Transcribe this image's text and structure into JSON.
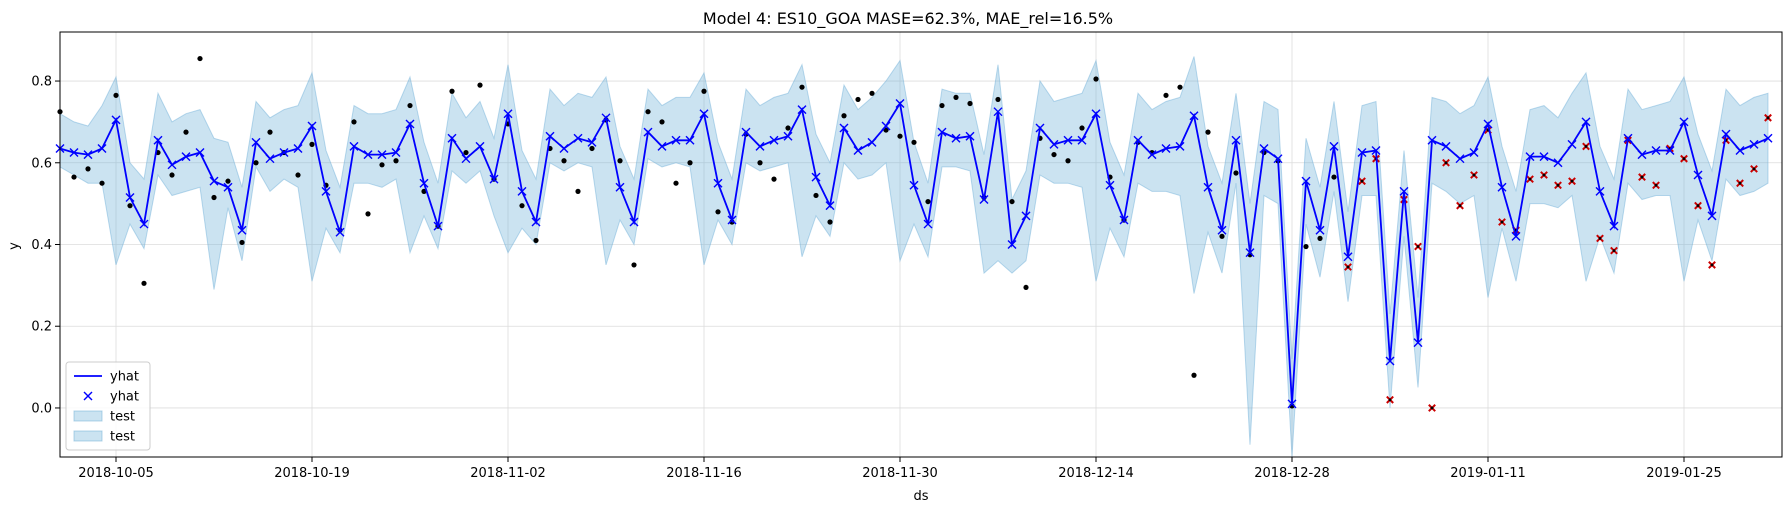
{
  "chart_data": {
    "type": "line",
    "title": "Model 4: ES10_GOA MASE=62.3%, MAE_rel=16.5%",
    "xlabel": "ds",
    "ylabel": "y",
    "x_start": "2018-10-01",
    "xlim": [
      "2018-10-01",
      "2019-02-01"
    ],
    "ylim": [
      -0.12,
      0.92
    ],
    "x_ticks": [
      "2018-10-05",
      "2018-10-19",
      "2018-11-02",
      "2018-11-16",
      "2018-11-30",
      "2018-12-14",
      "2018-12-28",
      "2019-01-11",
      "2019-01-25"
    ],
    "y_ticks": [
      0.0,
      0.2,
      0.4,
      0.6,
      0.8
    ],
    "grid": true,
    "legend_position": "bottom-left",
    "legend": [
      {
        "label": "yhat",
        "kind": "line",
        "color": "#0000ff"
      },
      {
        "label": "yhat",
        "kind": "marker-x",
        "color": "#0000ff"
      },
      {
        "label": "test",
        "kind": "band",
        "color": "#add8e6"
      },
      {
        "label": "test",
        "kind": "band",
        "color": "#add8e6"
      }
    ],
    "colors": {
      "yhat": "#0000ff",
      "band": "#6baed6",
      "actual": "#000000",
      "test_actual": "#cc0000"
    },
    "yhat": [
      0.635,
      0.625,
      0.62,
      0.635,
      0.705,
      0.515,
      0.45,
      0.655,
      0.595,
      0.615,
      0.625,
      0.555,
      0.54,
      0.435,
      0.65,
      0.61,
      0.625,
      0.635,
      0.69,
      0.53,
      0.43,
      0.64,
      0.62,
      0.62,
      0.625,
      0.695,
      0.55,
      0.445,
      0.66,
      0.61,
      0.64,
      0.56,
      0.72,
      0.53,
      0.455,
      0.665,
      0.635,
      0.66,
      0.65,
      0.71,
      0.54,
      0.455,
      0.675,
      0.64,
      0.655,
      0.655,
      0.72,
      0.55,
      0.46,
      0.675,
      0.64,
      0.655,
      0.665,
      0.73,
      0.565,
      0.495,
      0.685,
      0.63,
      0.65,
      0.69,
      0.745,
      0.545,
      0.45,
      0.675,
      0.66,
      0.665,
      0.51,
      0.725,
      0.4,
      0.47,
      0.685,
      0.645,
      0.655,
      0.655,
      0.72,
      0.545,
      0.46,
      0.655,
      0.62,
      0.635,
      0.64,
      0.715,
      0.54,
      0.435,
      0.655,
      0.38,
      0.635,
      0.61,
      0.01,
      0.555,
      0.435,
      0.64,
      0.37,
      0.625,
      0.63,
      0.115,
      0.53,
      0.16,
      0.655,
      0.64,
      0.61,
      0.625,
      0.695,
      0.54,
      0.42,
      0.615,
      0.615,
      0.6,
      0.645,
      0.7,
      0.53,
      0.445,
      0.66,
      0.62,
      0.63,
      0.63,
      0.7,
      0.57,
      0.47,
      0.67,
      0.63,
      0.645,
      0.66
    ],
    "yhat_upper": [
      0.72,
      0.7,
      0.69,
      0.74,
      0.81,
      0.6,
      0.56,
      0.77,
      0.7,
      0.72,
      0.73,
      0.66,
      0.65,
      0.54,
      0.75,
      0.71,
      0.73,
      0.74,
      0.82,
      0.63,
      0.54,
      0.74,
      0.72,
      0.72,
      0.73,
      0.81,
      0.65,
      0.55,
      0.77,
      0.71,
      0.75,
      0.66,
      0.84,
      0.63,
      0.56,
      0.78,
      0.74,
      0.77,
      0.76,
      0.81,
      0.64,
      0.56,
      0.78,
      0.74,
      0.76,
      0.76,
      0.82,
      0.65,
      0.56,
      0.78,
      0.74,
      0.76,
      0.77,
      0.84,
      0.67,
      0.6,
      0.79,
      0.73,
      0.76,
      0.8,
      0.85,
      0.65,
      0.55,
      0.78,
      0.77,
      0.77,
      0.62,
      0.84,
      0.51,
      0.58,
      0.8,
      0.75,
      0.76,
      0.77,
      0.85,
      0.65,
      0.57,
      0.77,
      0.73,
      0.75,
      0.76,
      0.86,
      0.64,
      0.55,
      0.77,
      0.5,
      0.75,
      0.73,
      0.12,
      0.66,
      0.54,
      0.75,
      0.48,
      0.74,
      0.75,
      0.23,
      0.63,
      0.27,
      0.76,
      0.75,
      0.72,
      0.74,
      0.81,
      0.64,
      0.53,
      0.73,
      0.74,
      0.71,
      0.77,
      0.82,
      0.64,
      0.56,
      0.78,
      0.73,
      0.74,
      0.75,
      0.81,
      0.67,
      0.58,
      0.78,
      0.74,
      0.76,
      0.77
    ],
    "yhat_lower": [
      0.59,
      0.57,
      0.55,
      0.55,
      0.35,
      0.45,
      0.39,
      0.57,
      0.52,
      0.53,
      0.54,
      0.29,
      0.49,
      0.36,
      0.59,
      0.53,
      0.56,
      0.54,
      0.31,
      0.44,
      0.38,
      0.55,
      0.55,
      0.54,
      0.56,
      0.38,
      0.47,
      0.39,
      0.58,
      0.55,
      0.58,
      0.47,
      0.38,
      0.44,
      0.4,
      0.6,
      0.58,
      0.6,
      0.59,
      0.35,
      0.46,
      0.4,
      0.61,
      0.59,
      0.6,
      0.59,
      0.35,
      0.46,
      0.4,
      0.6,
      0.58,
      0.59,
      0.6,
      0.37,
      0.47,
      0.42,
      0.6,
      0.56,
      0.57,
      0.6,
      0.36,
      0.45,
      0.37,
      0.59,
      0.59,
      0.58,
      0.33,
      0.36,
      0.33,
      0.36,
      0.57,
      0.55,
      0.55,
      0.54,
      0.31,
      0.44,
      0.37,
      0.55,
      0.53,
      0.53,
      0.52,
      0.28,
      0.43,
      0.33,
      0.55,
      -0.09,
      0.52,
      0.5,
      -0.12,
      0.45,
      0.32,
      0.53,
      0.26,
      0.52,
      0.52,
      0.0,
      0.42,
      0.05,
      0.55,
      0.53,
      0.5,
      0.52,
      0.27,
      0.44,
      0.31,
      0.5,
      0.5,
      0.49,
      0.52,
      0.31,
      0.42,
      0.33,
      0.55,
      0.51,
      0.52,
      0.52,
      0.31,
      0.46,
      0.36,
      0.56,
      0.52,
      0.53,
      0.55
    ],
    "actual_points": [
      [
        0,
        0.725
      ],
      [
        1,
        0.565
      ],
      [
        2,
        0.585
      ],
      [
        3,
        0.55
      ],
      [
        4,
        0.765
      ],
      [
        5,
        0.495
      ],
      [
        6,
        0.305
      ],
      [
        7,
        0.625
      ],
      [
        8,
        0.57
      ],
      [
        9,
        0.675
      ],
      [
        10,
        0.855
      ],
      [
        11,
        0.515
      ],
      [
        12,
        0.555
      ],
      [
        13,
        0.405
      ],
      [
        14,
        0.6
      ],
      [
        15,
        0.675
      ],
      [
        16,
        0.625
      ],
      [
        17,
        0.57
      ],
      [
        18,
        0.645
      ],
      [
        19,
        0.545
      ],
      [
        20,
        0.435
      ],
      [
        21,
        0.7
      ],
      [
        22,
        0.475
      ],
      [
        23,
        0.595
      ],
      [
        24,
        0.605
      ],
      [
        25,
        0.74
      ],
      [
        26,
        0.53
      ],
      [
        27,
        0.445
      ],
      [
        28,
        0.775
      ],
      [
        29,
        0.625
      ],
      [
        30,
        0.79
      ],
      [
        31,
        0.56
      ],
      [
        32,
        0.695
      ],
      [
        33,
        0.495
      ],
      [
        34,
        0.41
      ],
      [
        35,
        0.635
      ],
      [
        36,
        0.605
      ],
      [
        37,
        0.53
      ],
      [
        38,
        0.635
      ],
      [
        39,
        0.705
      ],
      [
        40,
        0.605
      ],
      [
        41,
        0.35
      ],
      [
        42,
        0.725
      ],
      [
        43,
        0.7
      ],
      [
        44,
        0.55
      ],
      [
        45,
        0.6
      ],
      [
        46,
        0.775
      ],
      [
        47,
        0.48
      ],
      [
        48,
        0.455
      ],
      [
        49,
        0.67
      ],
      [
        50,
        0.6
      ],
      [
        51,
        0.56
      ],
      [
        52,
        0.685
      ],
      [
        53,
        0.785
      ],
      [
        54,
        0.52
      ],
      [
        55,
        0.455
      ],
      [
        56,
        0.715
      ],
      [
        57,
        0.755
      ],
      [
        58,
        0.77
      ],
      [
        59,
        0.68
      ],
      [
        60,
        0.665
      ],
      [
        61,
        0.65
      ],
      [
        62,
        0.505
      ],
      [
        63,
        0.74
      ],
      [
        64,
        0.76
      ],
      [
        65,
        0.745
      ],
      [
        66,
        0.515
      ],
      [
        67,
        0.755
      ],
      [
        68,
        0.505
      ],
      [
        69,
        0.295
      ],
      [
        70,
        0.66
      ],
      [
        71,
        0.62
      ],
      [
        72,
        0.605
      ],
      [
        73,
        0.685
      ],
      [
        74,
        0.805
      ],
      [
        75,
        0.565
      ],
      [
        76,
        0.46
      ],
      [
        77,
        0.65
      ],
      [
        78,
        0.625
      ],
      [
        79,
        0.765
      ],
      [
        80,
        0.785
      ],
      [
        81,
        0.08
      ],
      [
        82,
        0.675
      ],
      [
        83,
        0.42
      ],
      [
        84,
        0.575
      ],
      [
        85,
        0.375
      ],
      [
        86,
        0.625
      ],
      [
        87,
        0.605
      ],
      [
        88,
        0.005
      ],
      [
        89,
        0.395
      ],
      [
        90,
        0.415
      ],
      [
        91,
        0.565
      ]
    ],
    "test_points": [
      [
        92,
        0.345
      ],
      [
        93,
        0.555
      ],
      [
        94,
        0.61
      ],
      [
        95,
        0.02
      ],
      [
        96,
        0.51
      ],
      [
        97,
        0.395
      ],
      [
        98,
        0.0
      ],
      [
        99,
        0.6
      ],
      [
        100,
        0.495
      ],
      [
        101,
        0.57
      ],
      [
        102,
        0.68
      ],
      [
        103,
        0.455
      ],
      [
        104,
        0.435
      ],
      [
        105,
        0.56
      ],
      [
        106,
        0.57
      ],
      [
        107,
        0.545
      ],
      [
        108,
        0.555
      ],
      [
        109,
        0.64
      ],
      [
        110,
        0.415
      ],
      [
        111,
        0.385
      ],
      [
        112,
        0.655
      ],
      [
        113,
        0.565
      ],
      [
        114,
        0.545
      ],
      [
        115,
        0.635
      ],
      [
        116,
        0.61
      ],
      [
        117,
        0.495
      ],
      [
        118,
        0.35
      ],
      [
        119,
        0.655
      ],
      [
        120,
        0.55
      ],
      [
        121,
        0.585
      ],
      [
        122,
        0.71
      ]
    ]
  }
}
